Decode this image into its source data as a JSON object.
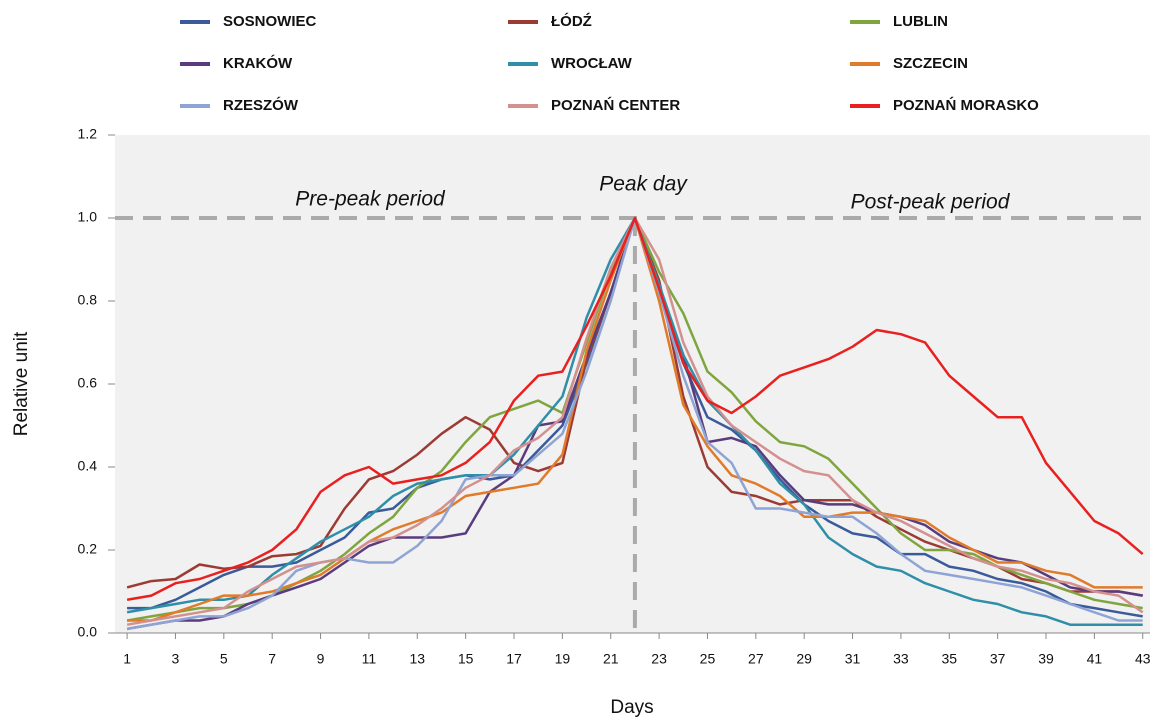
{
  "chart_data": {
    "type": "line",
    "x_label": "Days",
    "y_label": "Relative unit",
    "annotations": [
      "Pre-peak period",
      "Peak day",
      "Post-peak period"
    ],
    "reference_lines": {
      "y": 1.0,
      "x": 22
    },
    "x": [
      1,
      2,
      3,
      4,
      5,
      6,
      7,
      8,
      9,
      10,
      11,
      12,
      13,
      14,
      15,
      16,
      17,
      18,
      19,
      20,
      21,
      22,
      23,
      24,
      25,
      26,
      27,
      28,
      29,
      30,
      31,
      32,
      33,
      34,
      35,
      36,
      37,
      38,
      39,
      40,
      41,
      42,
      43
    ],
    "xlim": [
      0.5,
      43.3
    ],
    "xticks": [
      1,
      3,
      5,
      7,
      9,
      11,
      13,
      15,
      17,
      19,
      21,
      23,
      25,
      27,
      29,
      31,
      33,
      35,
      37,
      39,
      41,
      43
    ],
    "ylim": [
      0,
      1.2
    ],
    "yticks": [
      {
        "value": 0,
        "label": "0.0"
      },
      {
        "value": 0.2,
        "label": "0.2"
      },
      {
        "value": 0.4,
        "label": "0.4"
      },
      {
        "value": 0.6,
        "label": "0.6"
      },
      {
        "value": 0.8,
        "label": "0.8"
      },
      {
        "value": 1.0,
        "label": "1.0"
      },
      {
        "value": 1.2,
        "label": "1.2"
      }
    ],
    "series": [
      {
        "name": "SOSNOWIEC",
        "color": "#3a5a9a",
        "values": [
          0.06,
          0.06,
          0.08,
          0.11,
          0.14,
          0.16,
          0.16,
          0.17,
          0.2,
          0.23,
          0.29,
          0.3,
          0.35,
          0.37,
          0.38,
          0.37,
          0.38,
          0.44,
          0.5,
          0.65,
          0.82,
          1.0,
          0.82,
          0.65,
          0.52,
          0.49,
          0.44,
          0.37,
          0.31,
          0.27,
          0.24,
          0.23,
          0.19,
          0.19,
          0.16,
          0.15,
          0.13,
          0.12,
          0.1,
          0.07,
          0.06,
          0.05,
          0.04
        ]
      },
      {
        "name": "ŁÓDŹ",
        "color": "#9c3a34",
        "values": [
          0.11,
          0.125,
          0.13,
          0.165,
          0.155,
          0.16,
          0.185,
          0.19,
          0.21,
          0.3,
          0.37,
          0.39,
          0.43,
          0.48,
          0.52,
          0.49,
          0.41,
          0.39,
          0.41,
          0.66,
          0.82,
          1.0,
          0.85,
          0.57,
          0.4,
          0.34,
          0.33,
          0.31,
          0.32,
          0.32,
          0.32,
          0.28,
          0.25,
          0.22,
          0.2,
          0.18,
          0.16,
          0.13,
          0.12,
          0.1,
          0.1,
          0.1,
          0.09
        ]
      },
      {
        "name": "LUBLIN",
        "color": "#7fa53f",
        "values": [
          0.03,
          0.04,
          0.05,
          0.06,
          0.06,
          0.07,
          0.09,
          0.12,
          0.15,
          0.19,
          0.24,
          0.28,
          0.35,
          0.39,
          0.46,
          0.52,
          0.54,
          0.56,
          0.53,
          0.7,
          0.87,
          1.0,
          0.87,
          0.77,
          0.63,
          0.58,
          0.51,
          0.46,
          0.45,
          0.42,
          0.36,
          0.3,
          0.24,
          0.2,
          0.2,
          0.19,
          0.16,
          0.14,
          0.12,
          0.1,
          0.08,
          0.07,
          0.06
        ]
      },
      {
        "name": "KRAKÓW",
        "color": "#5a3c7e",
        "values": [
          0.01,
          0.02,
          0.03,
          0.03,
          0.04,
          0.07,
          0.09,
          0.11,
          0.13,
          0.17,
          0.21,
          0.23,
          0.23,
          0.23,
          0.24,
          0.34,
          0.38,
          0.5,
          0.51,
          0.67,
          0.82,
          1.0,
          0.83,
          0.67,
          0.46,
          0.47,
          0.45,
          0.38,
          0.32,
          0.31,
          0.31,
          0.29,
          0.28,
          0.26,
          0.22,
          0.2,
          0.18,
          0.17,
          0.14,
          0.11,
          0.1,
          0.1,
          0.09
        ]
      },
      {
        "name": "WROCŁAW",
        "color": "#2f8fa8",
        "values": [
          0.05,
          0.06,
          0.07,
          0.08,
          0.08,
          0.09,
          0.14,
          0.18,
          0.22,
          0.25,
          0.28,
          0.33,
          0.36,
          0.37,
          0.38,
          0.38,
          0.43,
          0.5,
          0.57,
          0.76,
          0.9,
          1.0,
          0.84,
          0.67,
          0.56,
          0.5,
          0.44,
          0.36,
          0.31,
          0.23,
          0.19,
          0.16,
          0.15,
          0.12,
          0.1,
          0.08,
          0.07,
          0.05,
          0.04,
          0.02,
          0.02,
          0.02,
          0.02
        ]
      },
      {
        "name": "SZCZECIN",
        "color": "#e07b2a",
        "values": [
          0.03,
          0.03,
          0.05,
          0.07,
          0.09,
          0.09,
          0.1,
          0.12,
          0.14,
          0.18,
          0.22,
          0.25,
          0.27,
          0.29,
          0.33,
          0.34,
          0.35,
          0.36,
          0.43,
          0.68,
          0.85,
          1.0,
          0.8,
          0.55,
          0.45,
          0.38,
          0.36,
          0.33,
          0.28,
          0.28,
          0.29,
          0.29,
          0.28,
          0.27,
          0.23,
          0.2,
          0.17,
          0.17,
          0.15,
          0.14,
          0.11,
          0.11,
          0.11
        ]
      },
      {
        "name": "RZESZÓW",
        "color": "#8ea4d4",
        "values": [
          0.01,
          0.02,
          0.03,
          0.04,
          0.04,
          0.06,
          0.09,
          0.15,
          0.17,
          0.18,
          0.17,
          0.17,
          0.21,
          0.27,
          0.37,
          0.38,
          0.38,
          0.43,
          0.48,
          0.63,
          0.8,
          1.0,
          0.82,
          0.62,
          0.46,
          0.41,
          0.3,
          0.3,
          0.29,
          0.28,
          0.28,
          0.24,
          0.19,
          0.15,
          0.14,
          0.13,
          0.12,
          0.11,
          0.09,
          0.07,
          0.05,
          0.03,
          0.03
        ]
      },
      {
        "name": "POZNAŃ CENTER",
        "color": "#d4908e",
        "values": [
          0.02,
          0.03,
          0.04,
          0.05,
          0.06,
          0.1,
          0.13,
          0.16,
          0.17,
          0.18,
          0.22,
          0.23,
          0.26,
          0.3,
          0.35,
          0.38,
          0.44,
          0.47,
          0.52,
          0.71,
          0.88,
          1.0,
          0.9,
          0.7,
          0.57,
          0.5,
          0.46,
          0.42,
          0.39,
          0.38,
          0.32,
          0.29,
          0.27,
          0.24,
          0.21,
          0.18,
          0.16,
          0.15,
          0.13,
          0.12,
          0.1,
          0.09,
          0.05
        ]
      },
      {
        "name": "POZNAŃ MORASKO",
        "color": "#e8201f",
        "values": [
          0.08,
          0.09,
          0.12,
          0.13,
          0.15,
          0.17,
          0.2,
          0.25,
          0.34,
          0.38,
          0.4,
          0.36,
          0.37,
          0.38,
          0.41,
          0.46,
          0.56,
          0.62,
          0.63,
          0.74,
          0.86,
          1.0,
          0.83,
          0.65,
          0.56,
          0.53,
          0.57,
          0.62,
          0.64,
          0.66,
          0.69,
          0.73,
          0.72,
          0.7,
          0.62,
          0.57,
          0.52,
          0.52,
          0.41,
          0.34,
          0.27,
          0.24,
          0.19
        ]
      }
    ]
  }
}
